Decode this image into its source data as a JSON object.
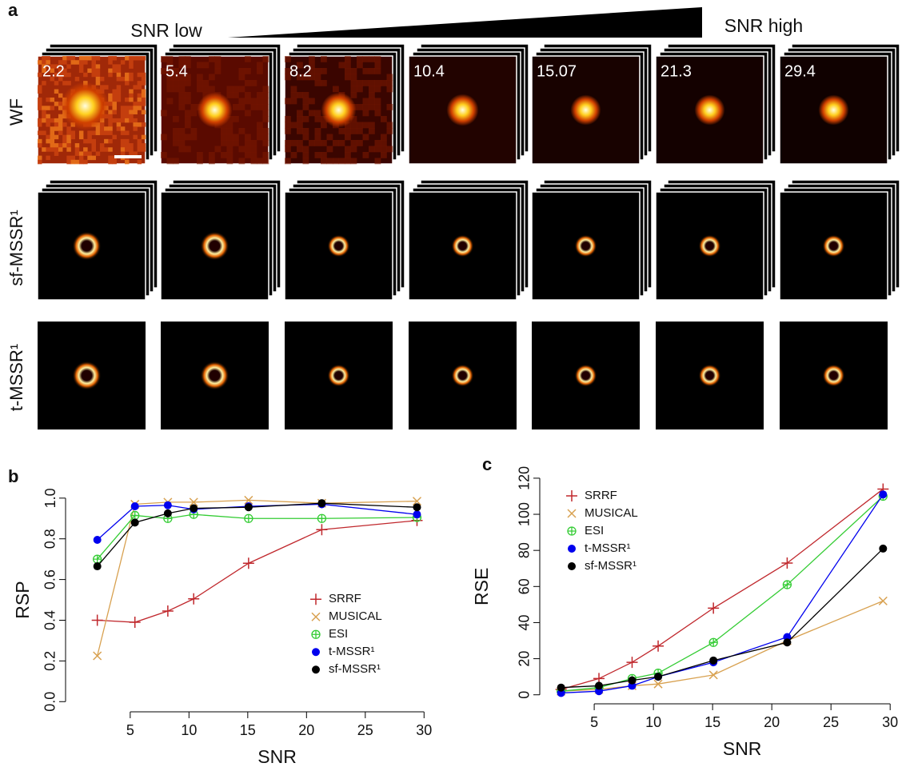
{
  "panel_a": {
    "label": "a",
    "snr_low": "SNR low",
    "snr_high": "SNR high",
    "rows": [
      "WF",
      "sf-MSSR¹",
      "t-MSSR¹"
    ],
    "snr_values": [
      "2.2",
      "5.4",
      "8.2",
      "10.4",
      "15.07",
      "21.3",
      "29.4"
    ]
  },
  "chart_data": [
    {
      "type": "line",
      "label": "b",
      "x_label": "SNR",
      "y_label": "RSP",
      "x": [
        2.2,
        5.4,
        8.2,
        10.4,
        15.07,
        21.3,
        29.4
      ],
      "xlim": [
        -0.5,
        31
      ],
      "xticks": [
        5,
        10,
        15,
        20,
        25,
        30
      ],
      "ylim": [
        -0.05,
        1.07
      ],
      "yticks": [
        {
          "value": 0,
          "label": "0.0"
        },
        {
          "value": 0.2,
          "label": "0.2"
        },
        {
          "value": 0.4,
          "label": "0.4"
        },
        {
          "value": 0.6,
          "label": "0.6"
        },
        {
          "value": 0.8,
          "label": "0.8"
        },
        {
          "value": 1,
          "label": "1.0"
        }
      ],
      "legend": "lower right",
      "series": [
        {
          "name": "SRRF",
          "color": "#c0282d",
          "marker": "plus",
          "values": [
            0.4,
            0.39,
            0.445,
            0.505,
            0.68,
            0.845,
            0.89
          ]
        },
        {
          "name": "MUSICAL",
          "color": "#d8a150",
          "marker": "cross",
          "values": [
            0.225,
            0.97,
            0.98,
            0.98,
            0.99,
            0.975,
            0.985
          ]
        },
        {
          "name": "ESI",
          "color": "#33cc33",
          "marker": "circle-plus",
          "values": [
            0.7,
            0.915,
            0.9,
            0.92,
            0.9,
            0.9,
            0.905
          ]
        },
        {
          "name": "t-MSSR¹",
          "color": "#0000ee",
          "marker": "dot",
          "values": [
            0.795,
            0.96,
            0.965,
            0.945,
            0.96,
            0.97,
            0.92
          ]
        },
        {
          "name": "sf-MSSR¹",
          "color": "#000000",
          "marker": "dot",
          "values": [
            0.665,
            0.88,
            0.925,
            0.95,
            0.955,
            0.975,
            0.955
          ]
        }
      ]
    },
    {
      "type": "line",
      "label": "c",
      "x_label": "SNR",
      "y_label": "RSE",
      "x": [
        2.2,
        5.4,
        8.2,
        10.4,
        15.07,
        21.3,
        29.4
      ],
      "xlim": [
        0.4,
        31
      ],
      "xticks": [
        5,
        10,
        15,
        20,
        25,
        30
      ],
      "ylim": [
        -5,
        123.5
      ],
      "yticks": [
        0,
        20,
        40,
        60,
        80,
        100,
        120
      ],
      "legend": "upper left",
      "series": [
        {
          "name": "SRRF",
          "color": "#c0282d",
          "marker": "plus",
          "values": [
            3,
            9,
            18,
            27,
            48,
            73,
            114
          ]
        },
        {
          "name": "MUSICAL",
          "color": "#d8a150",
          "marker": "cross",
          "values": [
            2,
            3,
            5,
            6,
            11,
            30,
            52
          ]
        },
        {
          "name": "ESI",
          "color": "#33cc33",
          "marker": "circle-plus",
          "values": [
            2,
            4,
            9,
            12,
            29,
            61,
            110
          ]
        },
        {
          "name": "t-MSSR¹",
          "color": "#0000ee",
          "marker": "dot",
          "values": [
            1,
            2,
            5,
            10,
            18,
            32,
            111
          ]
        },
        {
          "name": "sf-MSSR¹",
          "color": "#000000",
          "marker": "dot",
          "values": [
            4,
            5,
            8,
            10,
            19,
            29,
            81
          ]
        }
      ]
    }
  ]
}
